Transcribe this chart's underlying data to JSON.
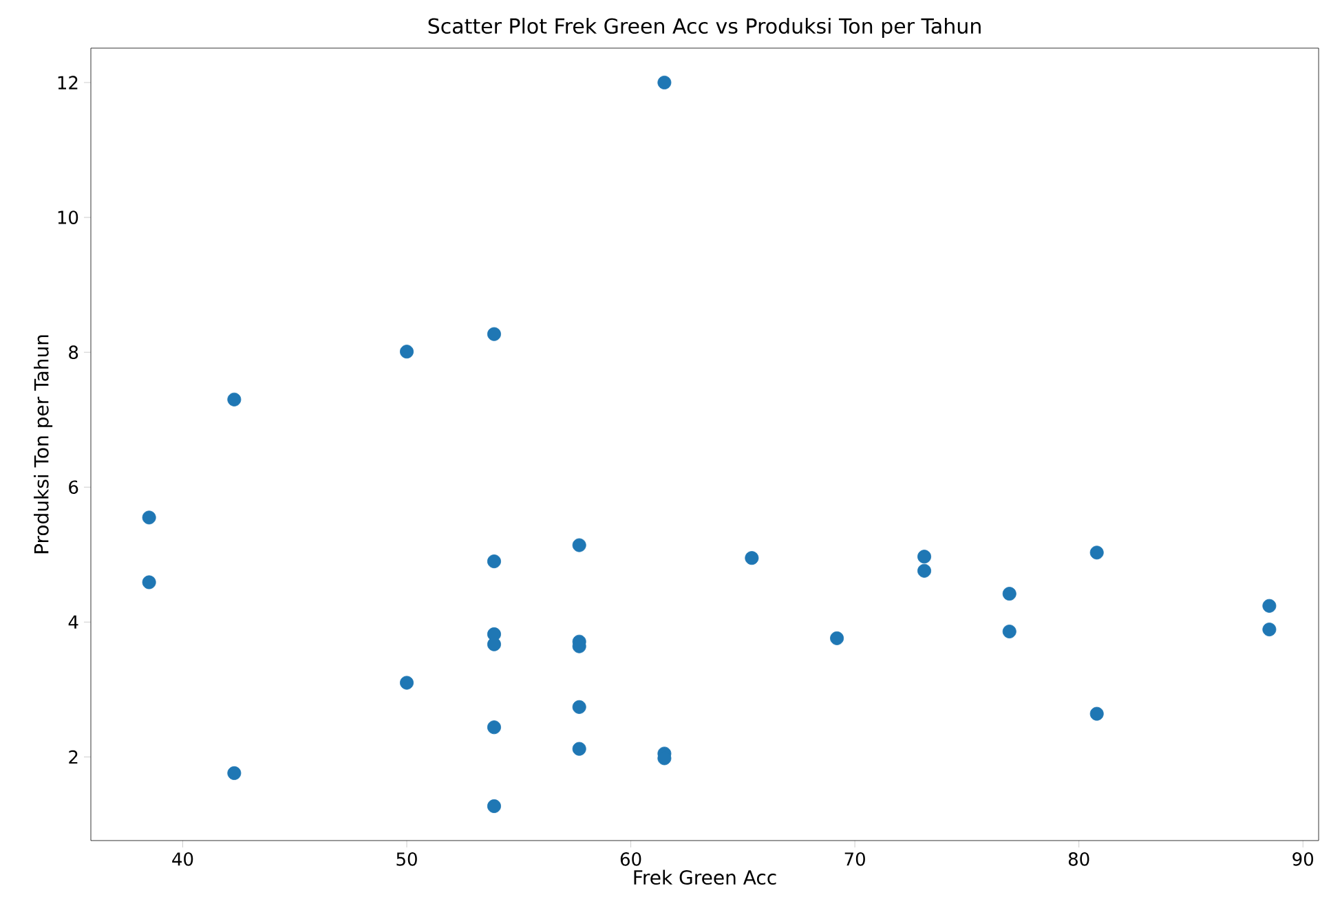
{
  "chart_data": {
    "type": "scatter",
    "title": "Scatter Plot Frek Green Acc vs Produksi Ton per Tahun",
    "xlabel": "Frek Green Acc",
    "ylabel": "Produksi Ton per Tahun",
    "x": [
      38.5,
      38.5,
      42.3,
      42.3,
      50,
      50,
      53.9,
      53.9,
      53.9,
      53.9,
      53.9,
      53.9,
      57.7,
      57.7,
      57.7,
      57.7,
      57.7,
      61.5,
      61.5,
      61.5,
      65.4,
      69.2,
      73.1,
      73.1,
      76.9,
      76.9,
      80.8,
      80.8,
      88.5,
      88.5
    ],
    "values": [
      5.55,
      4.59,
      7.3,
      1.76,
      8.01,
      3.1,
      8.27,
      4.9,
      3.82,
      3.67,
      2.44,
      1.27,
      5.14,
      3.71,
      3.64,
      2.74,
      2.12,
      12.0,
      2.05,
      1.98,
      4.95,
      3.76,
      4.97,
      4.76,
      4.42,
      3.86,
      5.03,
      2.64,
      4.24,
      3.89
    ],
    "color": "#1f77b4",
    "marker": "circle",
    "xlim": [
      35.9,
      90.7
    ],
    "ylim": [
      0.76,
      12.51
    ],
    "xticks": [
      40,
      50,
      60,
      70,
      80,
      90
    ],
    "yticks": [
      2,
      4,
      6,
      8,
      10,
      12
    ]
  }
}
